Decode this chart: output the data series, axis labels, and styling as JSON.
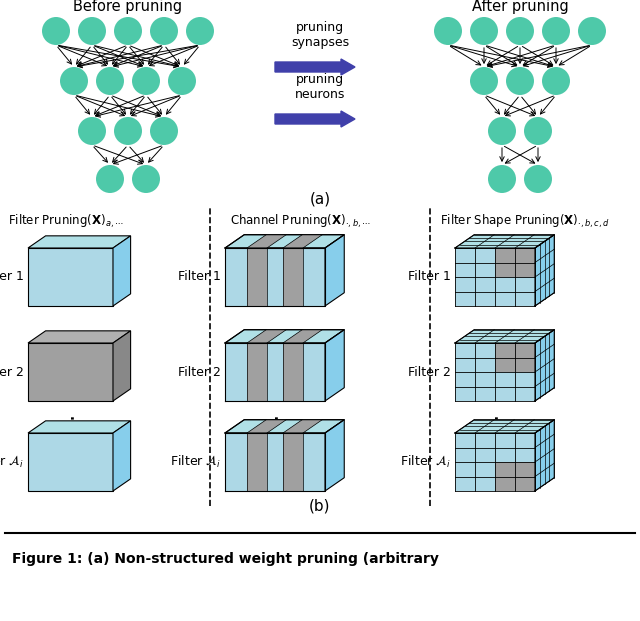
{
  "teal_color": "#4EC9A9",
  "gray_color": "#999999",
  "arrow_color": "#4040AA",
  "bg_color": "#ffffff",
  "title_before": "Before pruning",
  "title_after": "After pruning",
  "label_a": "(a)",
  "label_b": "(b)",
  "pruning_synapses": "pruning\nsynapses",
  "pruning_neurons": "pruning\nneurons",
  "filter1": "Filter 1",
  "filter2": "Filter 2",
  "filterAi": "Filter $\\mathcal{A}_i$",
  "fig_caption": "Figure 1: (a) Non-structured weight pruning (arbitrary"
}
